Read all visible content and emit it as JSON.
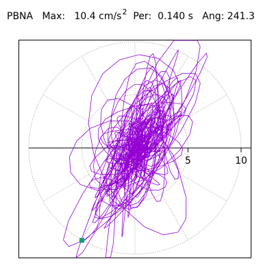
{
  "header": {
    "station": "PBNA",
    "max_label": "Max:",
    "max_value": "10.4 cm/s",
    "max_exponent": "2",
    "per_label": "Per:",
    "per_value": "0.140 s",
    "ang_label": "Ang:",
    "ang_value": "241.3"
  },
  "chart_data": {
    "type": "polar-orbit",
    "title": "",
    "radial_ticks": [
      {
        "value": 5,
        "label": "5"
      },
      {
        "value": 10,
        "label": "10"
      }
    ],
    "radial_unit": "cm/s²",
    "max_value": 10.4,
    "period_s": 0.14,
    "angle_deg": 241.3,
    "grid": "dotted polar",
    "grid_rings": [
      5,
      10
    ],
    "grid_spokes_deg": [
      30,
      60,
      90,
      120,
      150,
      210,
      240,
      270,
      300,
      330
    ],
    "colors": {
      "trace": "#9400d3",
      "marker": "#00a26e",
      "grid": "#999999",
      "axis": "#000000"
    },
    "peak_marker": {
      "x": -5.0,
      "y": -8.7
    }
  }
}
